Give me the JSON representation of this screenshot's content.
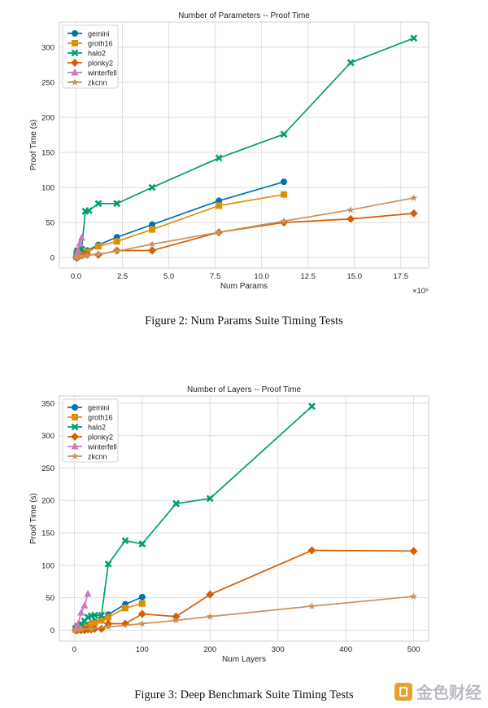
{
  "chart_data": [
    {
      "type": "line",
      "title": "Number of Parameters -- Proof Time",
      "xlabel": "Num Params",
      "ylabel": "Proof Time (s)",
      "x_scale_label": "×10⁶",
      "xlim": [
        -0.9,
        19.0
      ],
      "ylim": [
        -15,
        336
      ],
      "xticks": [
        0,
        2.5,
        5,
        7.5,
        10,
        12.5,
        15,
        17.5
      ],
      "xtick_labels": [
        "0.0",
        "2.5",
        "5.0",
        "7.5",
        "10.0",
        "12.5",
        "15.0",
        "17.5"
      ],
      "yticks": [
        0,
        50,
        100,
        150,
        200,
        250,
        300
      ],
      "ytick_labels": [
        "0",
        "50",
        "100",
        "150",
        "200",
        "250",
        "300"
      ],
      "legend_position": "upper-left",
      "series": [
        {
          "name": "gemini",
          "color": "#0173b2",
          "marker": "circle",
          "x": [
            0.02,
            0.05,
            0.1,
            0.3,
            0.6,
            1.2,
            2.2,
            4.1,
            7.7,
            11.2
          ],
          "y": [
            1,
            2,
            3,
            5,
            10,
            18,
            29,
            47,
            81,
            108
          ]
        },
        {
          "name": "groth16",
          "color": "#de8f05",
          "marker": "square",
          "x": [
            0.02,
            0.05,
            0.1,
            0.3,
            0.6,
            1.2,
            2.2,
            4.1,
            7.7,
            11.2
          ],
          "y": [
            1,
            2,
            3,
            4,
            8,
            16,
            23,
            40,
            74,
            90
          ]
        },
        {
          "name": "halo2",
          "color": "#029e73",
          "marker": "x",
          "x": [
            0.02,
            0.05,
            0.1,
            0.3,
            0.5,
            0.7,
            1.2,
            2.2,
            4.1,
            7.7,
            11.2,
            14.8,
            18.2
          ],
          "y": [
            5,
            8,
            10,
            12,
            66,
            67,
            77,
            77,
            100,
            142,
            176,
            278,
            313
          ]
        },
        {
          "name": "plonky2",
          "color": "#d55e00",
          "marker": "diamond",
          "x": [
            0.02,
            0.05,
            0.1,
            0.3,
            0.6,
            1.2,
            2.2,
            4.1,
            7.7,
            11.2,
            14.8,
            18.2
          ],
          "y": [
            0,
            0,
            1,
            3,
            4,
            4,
            10,
            10,
            36,
            50,
            55,
            63
          ]
        },
        {
          "name": "winterfell",
          "color": "#cc78bc",
          "marker": "triangle",
          "x": [
            0.02,
            0.05,
            0.1,
            0.2,
            0.3
          ],
          "y": [
            2,
            5,
            10,
            20,
            28
          ]
        },
        {
          "name": "zkcnn",
          "color": "#ca9161",
          "marker": "star",
          "x": [
            0.02,
            0.1,
            0.3,
            0.6,
            1.2,
            2.2,
            4.1,
            7.7,
            11.2,
            14.8,
            18.2
          ],
          "y": [
            0,
            1,
            2,
            3,
            5,
            9,
            19,
            36,
            52,
            68,
            85
          ]
        }
      ]
    },
    {
      "type": "line",
      "title": "Number of Layers -- Proof Time",
      "xlabel": "Num Layers",
      "ylabel": "Proof Time (s)",
      "x_scale_label": "",
      "xlim": [
        -22,
        522
      ],
      "ylim": [
        -17,
        361
      ],
      "xticks": [
        0,
        100,
        200,
        300,
        400,
        500
      ],
      "xtick_labels": [
        "0",
        "100",
        "200",
        "300",
        "400",
        "500"
      ],
      "yticks": [
        0,
        50,
        100,
        150,
        200,
        250,
        300,
        350
      ],
      "ytick_labels": [
        "0",
        "50",
        "100",
        "150",
        "200",
        "250",
        "300",
        "350"
      ],
      "legend_position": "upper-left",
      "series": [
        {
          "name": "gemini",
          "color": "#0173b2",
          "marker": "circle",
          "x": [
            2,
            5,
            10,
            15,
            20,
            25,
            30,
            40,
            50,
            75,
            100
          ],
          "y": [
            1,
            2,
            4,
            6,
            8,
            10,
            13,
            17,
            24,
            40,
            51
          ]
        },
        {
          "name": "groth16",
          "color": "#de8f05",
          "marker": "square",
          "x": [
            2,
            5,
            10,
            15,
            20,
            25,
            30,
            40,
            50,
            75,
            100
          ],
          "y": [
            1,
            2,
            3,
            5,
            7,
            9,
            11,
            15,
            20,
            34,
            41
          ]
        },
        {
          "name": "halo2",
          "color": "#029e73",
          "marker": "x",
          "x": [
            2,
            5,
            10,
            15,
            20,
            25,
            30,
            40,
            50,
            75,
            100,
            150,
            200,
            350
          ],
          "y": [
            3,
            6,
            10,
            14,
            20,
            22,
            23,
            23,
            102,
            138,
            133,
            195,
            203,
            345
          ]
        },
        {
          "name": "plonky2",
          "color": "#d55e00",
          "marker": "diamond",
          "x": [
            2,
            5,
            10,
            15,
            20,
            25,
            30,
            40,
            50,
            75,
            100,
            150,
            200,
            350,
            500
          ],
          "y": [
            0,
            0,
            0,
            0,
            1,
            1,
            2,
            2,
            10,
            10,
            25,
            21,
            55,
            123,
            122
          ]
        },
        {
          "name": "winterfell",
          "color": "#cc78bc",
          "marker": "triangle",
          "x": [
            2,
            5,
            10,
            15,
            20
          ],
          "y": [
            2,
            8,
            27,
            38,
            56
          ]
        },
        {
          "name": "zkcnn",
          "color": "#ca9161",
          "marker": "star",
          "x": [
            2,
            10,
            25,
            50,
            100,
            150,
            200,
            350,
            500
          ],
          "y": [
            0,
            1,
            2,
            5,
            10,
            15,
            21,
            37,
            52
          ]
        }
      ]
    }
  ],
  "captions": {
    "figure2": "Figure 2: Num Params Suite Timing Tests",
    "figure3": "Figure 3: Deep Benchmark Suite Timing Tests"
  },
  "watermark": {
    "text": "金色财经",
    "logo_icon": "jinse-logo-icon",
    "color": "#b9bcc2"
  }
}
